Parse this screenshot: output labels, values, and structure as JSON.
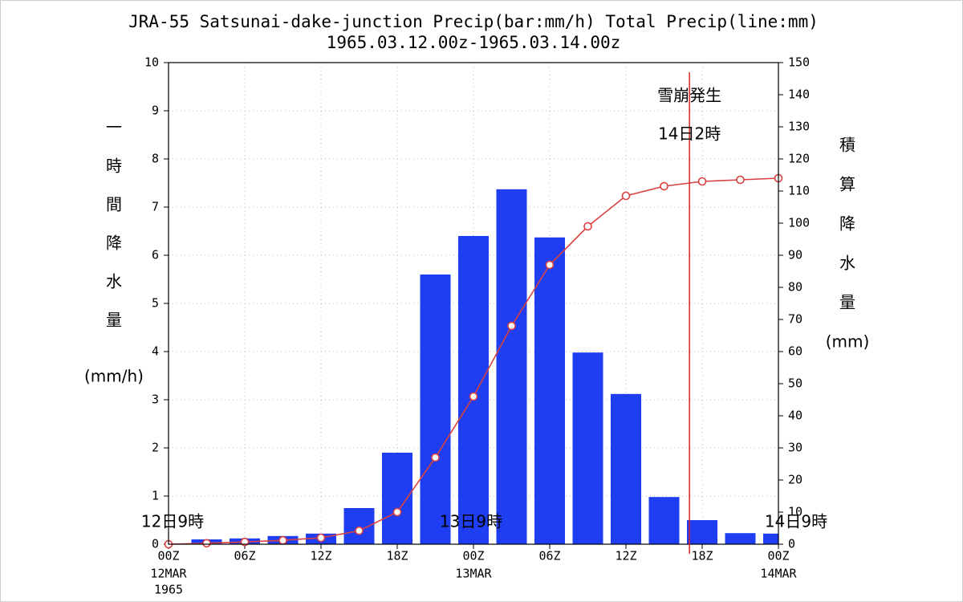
{
  "chart_data": {
    "type": "bar-line",
    "title": [
      "JRA-55 Satsunai-dake-junction Precip(bar:mm/h) Total Precip(line:mm)",
      "1965.03.12.00z-1965.03.14.00z"
    ],
    "ylabel": [
      "一",
      "時",
      "間",
      "降",
      "水",
      "量",
      "(mm/h)"
    ],
    "y2label": [
      "積",
      "算",
      "降",
      "水",
      "量",
      "(mm)"
    ],
    "xlim": [
      0,
      48
    ],
    "xticks": [
      {
        "value": 0,
        "label": "00Z"
      },
      {
        "value": 6,
        "label": "06Z"
      },
      {
        "value": 12,
        "label": "12Z"
      },
      {
        "value": 18,
        "label": "18Z"
      },
      {
        "value": 24,
        "label": "00Z"
      },
      {
        "value": 30,
        "label": "06Z"
      },
      {
        "value": 36,
        "label": "12Z"
      },
      {
        "value": 42,
        "label": "18Z"
      },
      {
        "value": 48,
        "label": "00Z"
      }
    ],
    "xtick_dates": [
      {
        "value": 0,
        "label": "12MAR"
      },
      {
        "value": 24,
        "label": "13MAR"
      },
      {
        "value": 48,
        "label": "14MAR"
      }
    ],
    "xtick_year": {
      "value": 0,
      "label": "1965"
    },
    "local_time_labels": [
      {
        "value": 0,
        "label": "12日9時"
      },
      {
        "value": 24,
        "label": "13日9時"
      },
      {
        "value": 48,
        "label": "14日9時"
      }
    ],
    "ylim": [
      0,
      10
    ],
    "yticks": [
      0,
      1,
      2,
      3,
      4,
      5,
      6,
      7,
      8,
      9,
      10
    ],
    "y2lim": [
      0,
      150
    ],
    "y2ticks": [
      0,
      10,
      20,
      30,
      40,
      50,
      60,
      70,
      80,
      90,
      100,
      110,
      120,
      130,
      140,
      150
    ],
    "grid": true,
    "series": [
      {
        "type": "bar",
        "color": "#1f3ef2",
        "x": [
          3,
          6,
          9,
          12,
          15,
          18,
          21,
          24,
          27,
          30,
          33,
          36,
          39,
          42,
          45,
          48
        ],
        "values": [
          0.1,
          0.12,
          0.17,
          0.22,
          0.75,
          1.9,
          5.6,
          6.4,
          7.37,
          6.37,
          3.98,
          3.12,
          0.98,
          0.5,
          0.23,
          0.22
        ]
      },
      {
        "type": "line",
        "axis": "y2",
        "color": "#d9403f",
        "x": [
          0,
          3,
          6,
          9,
          12,
          15,
          18,
          21,
          24,
          27,
          30,
          33,
          36,
          39,
          42,
          45,
          48
        ],
        "values": [
          0,
          0.3,
          0.7,
          1.2,
          2,
          4.2,
          10,
          27,
          46,
          68,
          87,
          99,
          108.5,
          111.5,
          113,
          113.5,
          114
        ]
      }
    ],
    "event": {
      "x": 41,
      "labels": [
        "雪崩発生",
        "14日2時"
      ],
      "color": "#d62728"
    }
  }
}
